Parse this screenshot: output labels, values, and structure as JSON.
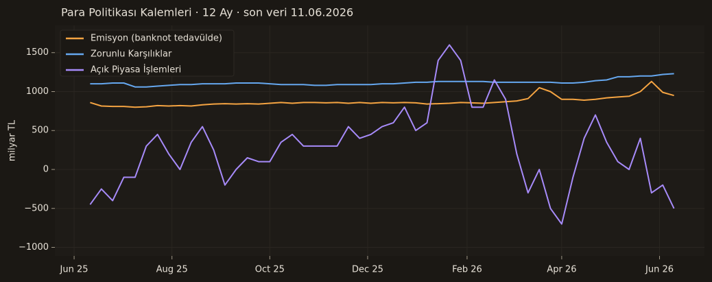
{
  "chart_data": {
    "type": "line",
    "title": "Para Politikası Kalemleri · 12 Ay · son veri 11.06.2026",
    "ylabel": "milyar TL",
    "x": [
      "2025-06-11",
      "2025-06-18",
      "2025-06-25",
      "2025-07-02",
      "2025-07-09",
      "2025-07-16",
      "2025-07-23",
      "2025-07-30",
      "2025-08-06",
      "2025-08-13",
      "2025-08-20",
      "2025-08-27",
      "2025-09-03",
      "2025-09-10",
      "2025-09-17",
      "2025-09-24",
      "2025-10-01",
      "2025-10-08",
      "2025-10-15",
      "2025-10-22",
      "2025-10-29",
      "2025-11-05",
      "2025-11-12",
      "2025-11-19",
      "2025-11-26",
      "2025-12-03",
      "2025-12-10",
      "2025-12-17",
      "2025-12-24",
      "2025-12-31",
      "2026-01-07",
      "2026-01-14",
      "2026-01-21",
      "2026-01-28",
      "2026-02-04",
      "2026-02-11",
      "2026-02-18",
      "2026-02-25",
      "2026-03-04",
      "2026-03-11",
      "2026-03-18",
      "2026-03-25",
      "2026-04-01",
      "2026-04-08",
      "2026-04-15",
      "2026-04-22",
      "2026-04-29",
      "2026-05-06",
      "2026-05-13",
      "2026-05-20",
      "2026-05-27",
      "2026-06-03",
      "2026-06-10"
    ],
    "series": [
      {
        "name": "Emisyon (banknot tedavülde)",
        "color": "#f5a442",
        "values": [
          860,
          815,
          810,
          810,
          800,
          805,
          820,
          815,
          820,
          815,
          830,
          840,
          845,
          840,
          845,
          840,
          850,
          860,
          850,
          860,
          860,
          855,
          860,
          850,
          860,
          850,
          860,
          855,
          860,
          855,
          840,
          845,
          850,
          860,
          855,
          850,
          860,
          870,
          880,
          910,
          1050,
          1000,
          900,
          900,
          890,
          900,
          920,
          930,
          940,
          1000,
          1130,
          990,
          950
        ]
      },
      {
        "name": "Zorunlu Karşılıklar",
        "color": "#66a8f0",
        "values": [
          1100,
          1100,
          1110,
          1110,
          1060,
          1060,
          1070,
          1080,
          1090,
          1090,
          1100,
          1100,
          1100,
          1110,
          1110,
          1110,
          1100,
          1090,
          1090,
          1090,
          1080,
          1080,
          1090,
          1090,
          1090,
          1090,
          1100,
          1100,
          1110,
          1120,
          1120,
          1130,
          1130,
          1130,
          1130,
          1130,
          1120,
          1120,
          1120,
          1120,
          1120,
          1120,
          1110,
          1110,
          1120,
          1140,
          1150,
          1190,
          1190,
          1200,
          1200,
          1220,
          1230
        ]
      },
      {
        "name": "Açık Piyasa İşlemleri",
        "color": "#a78bfa",
        "values": [
          -450,
          -250,
          -400,
          -100,
          -100,
          300,
          450,
          200,
          0,
          350,
          550,
          250,
          -200,
          0,
          150,
          100,
          100,
          350,
          450,
          300,
          300,
          300,
          300,
          550,
          400,
          450,
          550,
          600,
          800,
          500,
          600,
          1400,
          1600,
          1400,
          800,
          800,
          1150,
          900,
          200,
          -300,
          0,
          -500,
          -700,
          -100,
          400,
          700,
          350,
          100,
          0,
          400,
          -300,
          -200,
          -500
        ]
      }
    ],
    "xlim": [
      "2025-05-20",
      "2026-06-29"
    ],
    "xticks": [
      {
        "value": "2025-06-01",
        "label": "Jun 25"
      },
      {
        "value": "2025-08-01",
        "label": "Aug 25"
      },
      {
        "value": "2025-10-01",
        "label": "Oct 25"
      },
      {
        "value": "2025-12-01",
        "label": "Dec 25"
      },
      {
        "value": "2026-02-01",
        "label": "Feb 26"
      },
      {
        "value": "2026-04-01",
        "label": "Apr 26"
      },
      {
        "value": "2026-06-01",
        "label": "Jun 26"
      }
    ],
    "ylim": [
      -1110,
      1850
    ],
    "yticks": [
      {
        "value": -1000,
        "label": "−1000"
      },
      {
        "value": -500,
        "label": "−500"
      },
      0,
      500,
      1000,
      1500
    ],
    "grid": true,
    "legend": "upper-left"
  }
}
